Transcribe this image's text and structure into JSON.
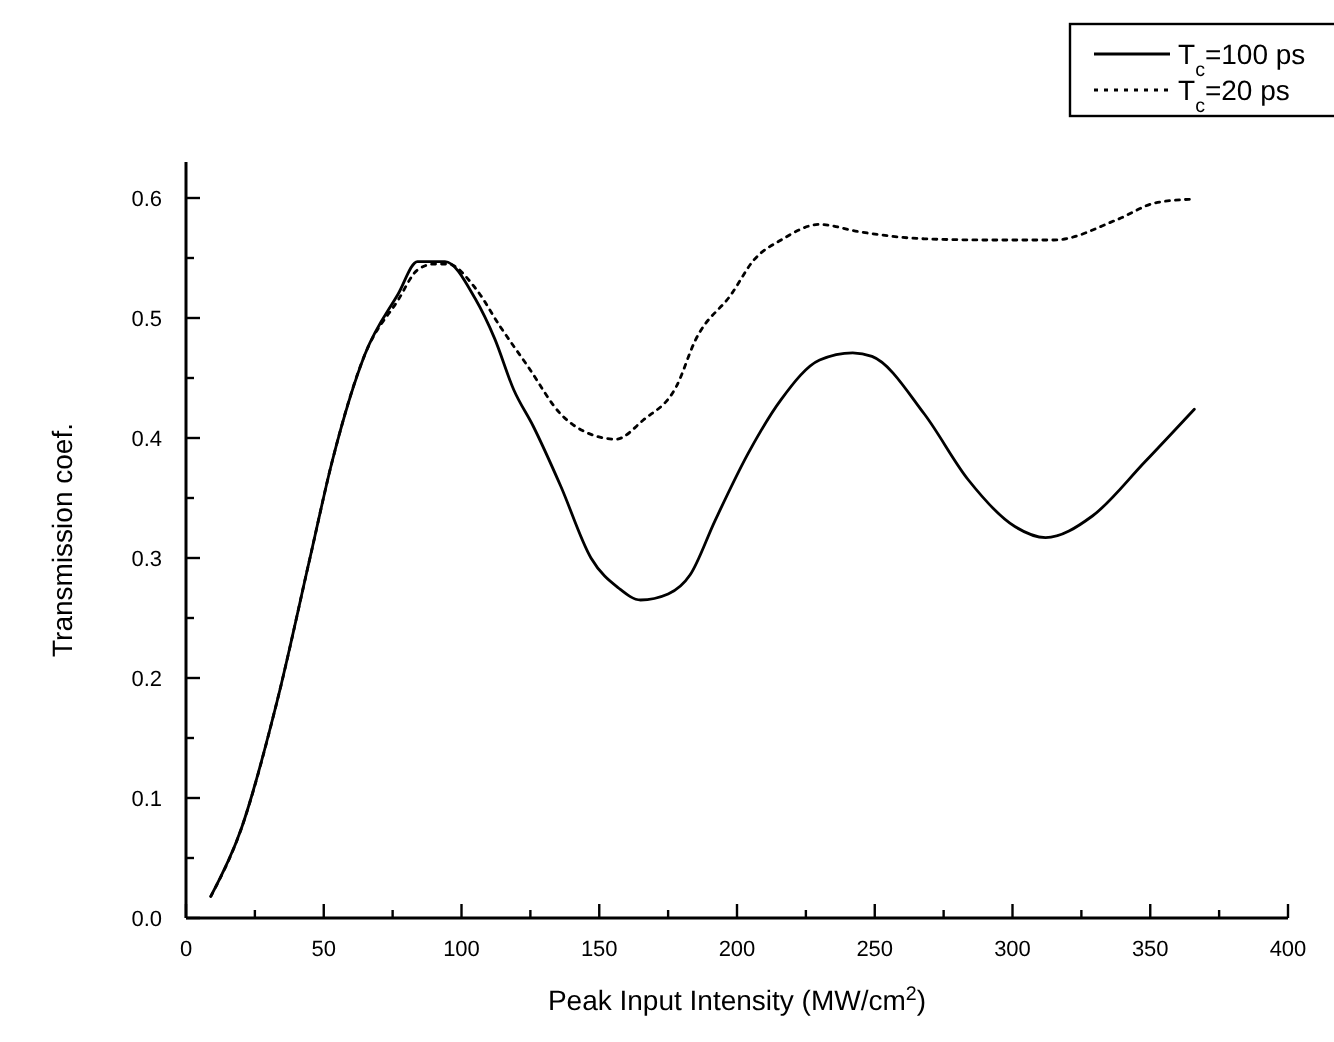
{
  "chart_data": {
    "type": "line",
    "xlabel": "Peak Input Intensity (MW/cm$^{2}$)",
    "ylabel": "Transmission coef.",
    "xlim": [
      0,
      400
    ],
    "ylim": [
      0,
      0.63
    ],
    "xticks": [
      0,
      {
        "value": 25,
        "label": null
      },
      50,
      {
        "value": 75,
        "label": null
      },
      100,
      {
        "value": 125,
        "label": null
      },
      150,
      {
        "value": 175,
        "label": null
      },
      200,
      {
        "value": 225,
        "label": null
      },
      250,
      {
        "value": 275,
        "label": null
      },
      300,
      {
        "value": 325,
        "label": null
      },
      350,
      {
        "value": 375,
        "label": null
      },
      400
    ],
    "yticks": [
      {
        "value": 0,
        "label": "0.0"
      },
      {
        "value": 0.05,
        "label": null
      },
      0.1,
      {
        "value": 0.15,
        "label": null
      },
      0.2,
      {
        "value": 0.25,
        "label": null
      },
      0.3,
      {
        "value": 0.35,
        "label": null
      },
      0.4,
      {
        "value": 0.45,
        "label": null
      },
      0.5,
      {
        "value": 0.55,
        "label": null
      },
      0.6
    ],
    "legend": "top right",
    "grid": false,
    "series": [
      {
        "name": "T$_{c}$=100 ps",
        "color": "#000000",
        "line_style": "solid",
        "x": [
          9,
          20,
          33,
          45,
          53,
          65,
          77,
          84,
          94,
          105,
          112,
          119,
          126,
          136,
          147,
          157,
          165,
          175,
          183,
          192,
          204,
          216,
          230,
          242,
          249,
          268,
          284,
          301,
          312,
          329,
          348,
          366
        ],
        "values": [
          0.018,
          0.074,
          0.18,
          0.3,
          0.38,
          0.47,
          0.52,
          0.547,
          0.547,
          0.516,
          0.483,
          0.44,
          0.41,
          0.36,
          0.3,
          0.275,
          0.265,
          0.27,
          0.286,
          0.331,
          0.387,
          0.432,
          0.465,
          0.471,
          0.468,
          0.42,
          0.365,
          0.326,
          0.317,
          0.335,
          0.38,
          0.424
        ]
      },
      {
        "name": "T$_{c}$=20 ps",
        "color": "#000000",
        "line_style": "dotted",
        "x": [
          9,
          20,
          33,
          45,
          53,
          65,
          77,
          84,
          90,
          95,
          105,
          114,
          124,
          136,
          147,
          156,
          166,
          178,
          185,
          198,
          206,
          216,
          230,
          244,
          268,
          291,
          315,
          338,
          352,
          365
        ],
        "values": [
          0.018,
          0.074,
          0.18,
          0.3,
          0.38,
          0.47,
          0.515,
          0.54,
          0.545,
          0.545,
          0.525,
          0.493,
          0.46,
          0.42,
          0.403,
          0.399,
          0.415,
          0.443,
          0.482,
          0.52,
          0.548,
          0.565,
          0.578,
          0.572,
          0.566,
          0.565,
          0.565,
          0.582,
          0.596,
          0.599
        ]
      }
    ]
  }
}
